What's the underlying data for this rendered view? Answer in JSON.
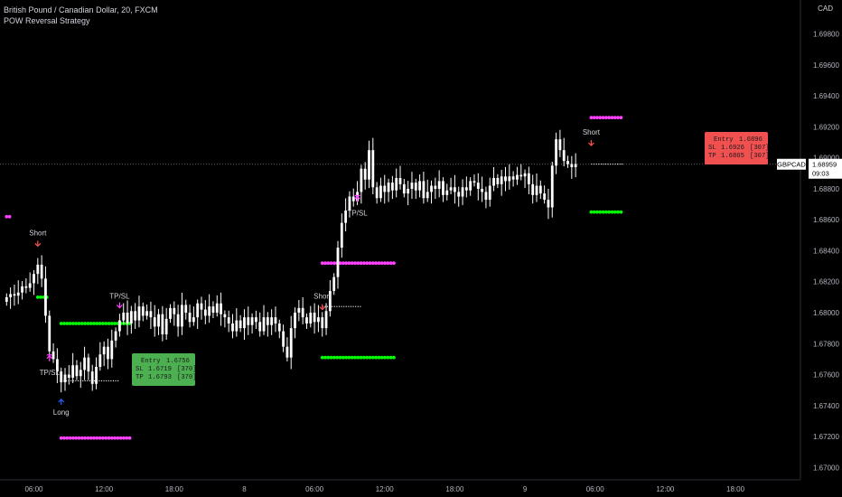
{
  "legend": {
    "symbol_title": "British Pound / Canadian Dollar, 20, FXCM",
    "indicator": "POW Reversal Strategy"
  },
  "colors": {
    "background": "#000000",
    "candle": "#ffffff",
    "axis_text": "#b2b5be",
    "stop_dots": "#ff40ff",
    "target_dots": "#00ff00",
    "short_arrow": "#ff5252",
    "long_arrow": "#2962ff",
    "exit_arrow": "#ff40ff",
    "long_box": "#4caf50",
    "short_box": "#f05050",
    "price_line": "#787b86"
  },
  "chart_data": {
    "type": "candlestick",
    "title": "British Pound / Canadian Dollar, 20, FXCM",
    "unit": "CAD",
    "symbol": "GBPCAD",
    "y_ticks": [
      1.67,
      1.672,
      1.674,
      1.676,
      1.678,
      1.68,
      1.682,
      1.684,
      1.686,
      1.688,
      1.69,
      1.692,
      1.694,
      1.696,
      1.698
    ],
    "y_tick_labels": [
      "1.67000",
      "1.67200",
      "1.67400",
      "1.67600",
      "1.67800",
      "1.68000",
      "1.68200",
      "1.68400",
      "1.68600",
      "1.68800",
      "1.69000",
      "1.69200",
      "1.69400",
      "1.69600",
      "1.69800"
    ],
    "ylim": [
      1.6692,
      1.7002
    ],
    "x_ticks": [
      {
        "label": "06:00",
        "bar": 7
      },
      {
        "label": "12:00",
        "bar": 25
      },
      {
        "label": "18:00",
        "bar": 43
      },
      {
        "label": "8",
        "bar": 61
      },
      {
        "label": "06:00",
        "bar": 79
      },
      {
        "label": "12:00",
        "bar": 97
      },
      {
        "label": "18:00",
        "bar": 115
      },
      {
        "label": "9",
        "bar": 133
      },
      {
        "label": "06:00",
        "bar": 151
      },
      {
        "label": "12:00",
        "bar": 169
      },
      {
        "label": "18:00",
        "bar": 187
      }
    ],
    "current_price": {
      "symbol": "GBPCAD",
      "price": "1.68959",
      "countdown": "09:03",
      "value": 1.68959
    },
    "closes": [
      1.681,
      1.6812,
      1.6811,
      1.6813,
      1.6817,
      1.6816,
      1.6819,
      1.6825,
      1.6831,
      1.6822,
      1.6798,
      1.6775,
      1.677,
      1.6762,
      1.6755,
      1.676,
      1.6758,
      1.6766,
      1.6759,
      1.6763,
      1.6771,
      1.6762,
      1.6754,
      1.6765,
      1.6773,
      1.6778,
      1.677,
      1.6782,
      1.6788,
      1.6795,
      1.68,
      1.6793,
      1.6801,
      1.6795,
      1.6804,
      1.6798,
      1.6801,
      1.6797,
      1.6791,
      1.6799,
      1.6786,
      1.6796,
      1.6803,
      1.6799,
      1.6791,
      1.6805,
      1.68,
      1.6794,
      1.6797,
      1.6806,
      1.6802,
      1.6798,
      1.6804,
      1.68,
      1.6806,
      1.6799,
      1.6797,
      1.6793,
      1.6788,
      1.6795,
      1.679,
      1.6797,
      1.6792,
      1.6797,
      1.6794,
      1.6788,
      1.6797,
      1.6792,
      1.6797,
      1.6793,
      1.6788,
      1.6778,
      1.6771,
      1.679,
      1.68,
      1.6803,
      1.6797,
      1.6793,
      1.68,
      1.6794,
      1.6797,
      1.679,
      1.6801,
      1.6814,
      1.6823,
      1.6842,
      1.6858,
      1.6866,
      1.6875,
      1.6872,
      1.6878,
      1.6893,
      1.6886,
      1.6905,
      1.6881,
      1.6874,
      1.6882,
      1.6878,
      1.6884,
      1.6879,
      1.6887,
      1.6883,
      1.6877,
      1.688,
      1.6884,
      1.6879,
      1.6885,
      1.6874,
      1.6878,
      1.6882,
      1.688,
      1.6885,
      1.6876,
      1.6879,
      1.6881,
      1.6878,
      1.6875,
      1.6881,
      1.6879,
      1.6885,
      1.6884,
      1.688,
      1.6878,
      1.6873,
      1.6882,
      1.6887,
      1.6883,
      1.6888,
      1.6885,
      1.6888,
      1.6886,
      1.6889,
      1.6888,
      1.689,
      1.6883,
      1.6876,
      1.6882,
      1.6877,
      1.6873,
      1.6868,
      1.6895,
      1.6912,
      1.6905,
      1.6898,
      1.6896,
      1.6894,
      1.6896
    ],
    "annotations": {
      "signals": [
        {
          "label": "Short",
          "bar": 8
        },
        {
          "label": "TP/SL",
          "bar": 11
        },
        {
          "label": "Long",
          "bar": 14
        },
        {
          "label": "TP/SL",
          "bar": 29
        },
        {
          "label": "Short",
          "bar": 81
        },
        {
          "label": "TP/SL",
          "bar": 90
        },
        {
          "label": "Short",
          "bar": 150
        }
      ],
      "long_trade": {
        "entry_label": "Entry",
        "entry": "1.6756",
        "entry_value": 1.6756,
        "sl_label": "SL",
        "sl": "1.6719",
        "sl_pips": "[370]",
        "sl_value": 1.6719,
        "tp_label": "TP",
        "tp": "1.6793",
        "tp_pips": "[370]",
        "tp_value": 1.6793
      },
      "short_trade_1": {
        "entry_value": 1.6804,
        "sl_value": 1.6832,
        "tp_value": 1.6771
      },
      "short_trade_2": {
        "entry_label": "Entry",
        "entry": "1.6896",
        "entry_value": 1.6896,
        "sl_label": "SL",
        "sl": "1.6926",
        "sl_pips": "[307]",
        "sl_value": 1.6926,
        "tp_label": "TP",
        "tp": "1.6865",
        "tp_pips": "[307]",
        "tp_value": 1.6865
      },
      "short_trade_0": {
        "sl_value": 1.6862,
        "tp_value": 1.681
      }
    }
  }
}
